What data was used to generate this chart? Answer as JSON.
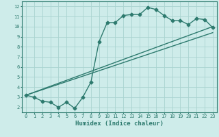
{
  "xlabel": "Humidex (Indice chaleur)",
  "bg_color": "#ceecea",
  "line_color": "#2d7a6e",
  "grid_color": "#aad4d0",
  "xlim": [
    -0.5,
    23.5
  ],
  "ylim": [
    1.5,
    12.5
  ],
  "xticks": [
    0,
    1,
    2,
    3,
    4,
    5,
    6,
    7,
    8,
    9,
    10,
    11,
    12,
    13,
    14,
    15,
    16,
    17,
    18,
    19,
    20,
    21,
    22,
    23
  ],
  "yticks": [
    2,
    3,
    4,
    5,
    6,
    7,
    8,
    9,
    10,
    11,
    12
  ],
  "line1_x": [
    0,
    1,
    2,
    3,
    4,
    5,
    6,
    7,
    8,
    9,
    10,
    11,
    12,
    13,
    14,
    15,
    16,
    17,
    18,
    19,
    20,
    21,
    22,
    23
  ],
  "line1_y": [
    3.2,
    3.0,
    2.6,
    2.5,
    2.0,
    2.5,
    1.9,
    3.0,
    4.5,
    8.5,
    10.4,
    10.4,
    11.1,
    11.2,
    11.2,
    11.9,
    11.7,
    11.1,
    10.6,
    10.6,
    10.2,
    10.8,
    10.7,
    9.9
  ],
  "line2_x": [
    0,
    23
  ],
  "line2_y": [
    3.2,
    10.0
  ],
  "line3_x": [
    0,
    23
  ],
  "line3_y": [
    3.2,
    9.4
  ],
  "marker": "D",
  "markersize": 2.5,
  "linewidth": 1.0,
  "xlabel_fontsize": 6.5,
  "tick_fontsize": 5.0
}
